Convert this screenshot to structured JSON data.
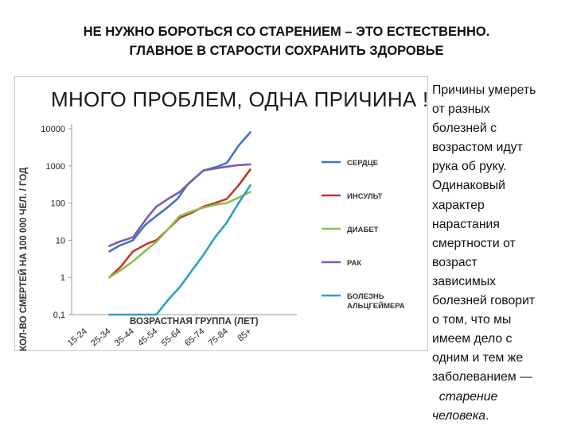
{
  "slide": {
    "title_line1": "НЕ НУЖНО БОРОТЬСЯ СО СТАРЕНИЕМ – ЭТО ЕСТЕСТВЕННО.",
    "title_line2": "ГЛАВНОЕ В СТАРОСТИ СОХРАНИТЬ ЗДОРОВЬЕ"
  },
  "side_text": {
    "lines": [
      "Причины умереть",
      "от разных",
      "болезней с",
      "возрастом идут",
      "рука об руку.",
      "Одинаковый",
      "характер",
      "нарастания",
      "смертности от",
      "возраст",
      "зависимых",
      "болезней говорит",
      "о том, что мы",
      "имеем дело с",
      "одним и тем же",
      "заболеванием —"
    ],
    "emph_line1": "старение",
    "emph_line2": "человека",
    "end_punct": "."
  },
  "chart_data": {
    "type": "line",
    "title": "МНОГО ПРОБЛЕМ, ОДНА ПРИЧИНА !",
    "ylabel": "КОЛ-ВО   СМЕРТЕЙ   НА   100 000   ЧЕЛ. / ГОД",
    "xlabel": "ВОЗРАСТНАЯ ГРУППА (ЛЕТ)",
    "y_scale": "log",
    "ylim": [
      0.1,
      10000
    ],
    "y_ticks": [
      "10000",
      "1000",
      "100",
      "10",
      "1",
      "0,1"
    ],
    "categories": [
      "15-24",
      "25-34",
      "35-44",
      "45-54",
      "55-64",
      "65-74",
      "75-84",
      "85+"
    ],
    "x_positions": [
      0,
      1,
      2,
      3,
      4,
      5,
      6,
      7
    ],
    "legend_position": "right",
    "grid": false,
    "series": [
      {
        "name": "СЕРДЦЕ",
        "color": "#4472c4",
        "x": [
          1,
          1.4,
          2,
          2.5,
          3,
          3.4,
          3.9,
          4.3,
          5,
          5.6,
          6,
          6.5,
          7
        ],
        "y": [
          5,
          7,
          10,
          25,
          45,
          70,
          130,
          300,
          750,
          950,
          1200,
          3500,
          8000
        ]
      },
      {
        "name": "ИНСУЛЬТ",
        "color": "#c0392b",
        "x": [
          1,
          1.5,
          2,
          2.6,
          3,
          3.5,
          4,
          4.5,
          5,
          5.5,
          6,
          6.5,
          7
        ],
        "y": [
          1,
          2,
          5,
          8,
          10,
          20,
          40,
          55,
          80,
          100,
          130,
          300,
          800
        ]
      },
      {
        "name": "ДИАБЕТ",
        "color": "#8cbf4b",
        "x": [
          1,
          1.5,
          2,
          2.5,
          3,
          3.5,
          4,
          4.5,
          5,
          5.5,
          6,
          6.5,
          7
        ],
        "y": [
          1,
          1.6,
          2.7,
          5,
          9,
          20,
          45,
          60,
          75,
          90,
          100,
          140,
          200
        ]
      },
      {
        "name": "РАК",
        "color": "#7f5ca8",
        "x": [
          1,
          1.4,
          2,
          2.6,
          3,
          3.5,
          4,
          4.4,
          5,
          5.5,
          6,
          6.5,
          7
        ],
        "y": [
          7,
          9,
          12,
          40,
          80,
          130,
          200,
          350,
          750,
          850,
          950,
          1050,
          1100
        ]
      },
      {
        "name": "БОЛЕЗНЬ АЛЬЦГЕЙМЕРА",
        "color": "#2e9fc7",
        "x": [
          1,
          1.5,
          2,
          2.5,
          3,
          3.5,
          4,
          4.5,
          5,
          5.5,
          6,
          6.5,
          7
        ],
        "y": [
          0.1,
          0.1,
          0.1,
          0.1,
          0.1,
          0.25,
          0.55,
          1.5,
          4,
          12,
          30,
          100,
          300
        ]
      }
    ]
  }
}
